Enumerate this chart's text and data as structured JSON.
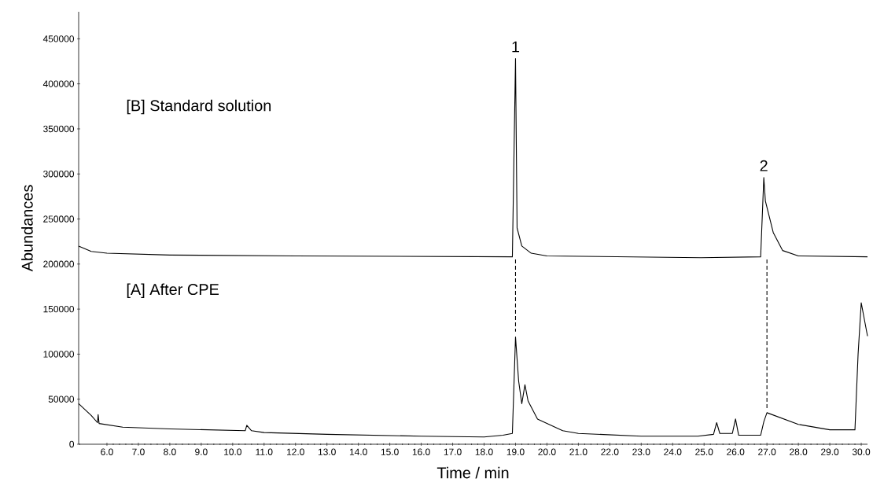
{
  "chart_data": {
    "type": "line",
    "xlabel": "Time / min",
    "ylabel": "Abundances",
    "xlim": [
      5.1,
      30.2
    ],
    "ylim": [
      0,
      480000
    ],
    "xticks": [
      {
        "value": 6,
        "label": "6.0"
      },
      {
        "value": 7,
        "label": "7.0"
      },
      {
        "value": 8,
        "label": "8.0"
      },
      {
        "value": 9,
        "label": "9.0"
      },
      {
        "value": 10,
        "label": "10.0"
      },
      {
        "value": 11,
        "label": "11.0"
      },
      {
        "value": 12,
        "label": "12.0"
      },
      {
        "value": 13,
        "label": "13.0"
      },
      {
        "value": 14,
        "label": "14.0"
      },
      {
        "value": 15,
        "label": "15.0"
      },
      {
        "value": 16,
        "label": "16.0"
      },
      {
        "value": 17,
        "label": "17.0"
      },
      {
        "value": 18,
        "label": "18.0"
      },
      {
        "value": 19,
        "label": "19.0"
      },
      {
        "value": 20,
        "label": "20.0"
      },
      {
        "value": 21,
        "label": "21.0"
      },
      {
        "value": 22,
        "label": "22.0"
      },
      {
        "value": 23,
        "label": "23.0"
      },
      {
        "value": 24,
        "label": "24.0"
      },
      {
        "value": 25,
        "label": "25.0"
      },
      {
        "value": 26,
        "label": "26.0"
      },
      {
        "value": 27,
        "label": "27.0"
      },
      {
        "value": 28,
        "label": "28.0"
      },
      {
        "value": 29,
        "label": "29.0"
      },
      {
        "value": 30,
        "label": "30.0"
      }
    ],
    "yticks": [
      0,
      50000,
      100000,
      150000,
      200000,
      250000,
      300000,
      350000,
      400000,
      450000
    ],
    "series": [
      {
        "color": "#000000",
        "line_style": "solid",
        "x": [
          5.1,
          5.5,
          6.0,
          8.0,
          12.0,
          18.9,
          19.0,
          19.05,
          19.2,
          19.5,
          20.0,
          24.9,
          26.8,
          26.9,
          26.95,
          27.2,
          27.5,
          28.0,
          30.2
        ],
        "values": [
          220000,
          214000,
          212000,
          210000,
          209000,
          208000,
          428000,
          240000,
          220000,
          212000,
          209000,
          207000,
          208000,
          296000,
          270000,
          235000,
          215000,
          209000,
          208000
        ]
      },
      {
        "color": "#000000",
        "line_style": "solid",
        "x": [
          5.1,
          5.5,
          5.7,
          5.72,
          5.75,
          6.5,
          8.0,
          10.4,
          10.45,
          10.6,
          11.0,
          13.0,
          16.0,
          18.0,
          18.6,
          18.9,
          19.0,
          19.1,
          19.2,
          19.3,
          19.4,
          19.7,
          20.5,
          21.0,
          23.0,
          24.8,
          25.3,
          25.4,
          25.5,
          25.9,
          26.0,
          26.1,
          26.8,
          26.9,
          27.0,
          28.0,
          29.0,
          29.8,
          29.9,
          30.0,
          30.2
        ],
        "values": [
          45000,
          32000,
          24000,
          33000,
          23000,
          19000,
          17000,
          15000,
          21000,
          15000,
          13000,
          11000,
          9000,
          8000,
          10000,
          12000,
          119000,
          70000,
          45000,
          66000,
          48000,
          28000,
          15000,
          12000,
          9000,
          9000,
          11000,
          24000,
          12000,
          12000,
          28000,
          10000,
          10000,
          25000,
          35000,
          22000,
          16000,
          16000,
          100000,
          157000,
          120000
        ]
      },
      {
        "color": "#000000",
        "line_style": "dashed",
        "x": [
          19.0,
          19.0
        ],
        "values": [
          205000,
          125000
        ]
      },
      {
        "color": "#000000",
        "line_style": "dashed",
        "x": [
          27.0,
          27.0
        ],
        "values": [
          205000,
          38000
        ]
      }
    ],
    "annotations": [
      {
        "text": "1",
        "x": 19.0,
        "y": 428000
      },
      {
        "text": "2",
        "x": 26.9,
        "y": 296000
      },
      "[B] Standard solution",
      "[A] After CPE"
    ]
  }
}
